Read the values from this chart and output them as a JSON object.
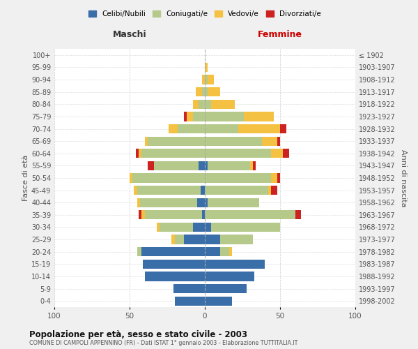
{
  "age_groups": [
    "0-4",
    "5-9",
    "10-14",
    "15-19",
    "20-24",
    "25-29",
    "30-34",
    "35-39",
    "40-44",
    "45-49",
    "50-54",
    "55-59",
    "60-64",
    "65-69",
    "70-74",
    "75-79",
    "80-84",
    "85-89",
    "90-94",
    "95-99",
    "100+"
  ],
  "birth_years": [
    "1998-2002",
    "1993-1997",
    "1988-1992",
    "1983-1987",
    "1978-1982",
    "1973-1977",
    "1968-1972",
    "1963-1967",
    "1958-1962",
    "1953-1957",
    "1948-1952",
    "1943-1947",
    "1938-1942",
    "1933-1937",
    "1928-1932",
    "1923-1927",
    "1918-1922",
    "1913-1917",
    "1908-1912",
    "1903-1907",
    "≤ 1902"
  ],
  "males": {
    "celibi": [
      20,
      21,
      40,
      41,
      42,
      14,
      8,
      2,
      5,
      3,
      0,
      4,
      0,
      0,
      0,
      0,
      0,
      0,
      0,
      0,
      0
    ],
    "coniugati": [
      0,
      0,
      0,
      0,
      3,
      6,
      22,
      38,
      38,
      42,
      48,
      30,
      42,
      38,
      18,
      8,
      4,
      2,
      0,
      0,
      0
    ],
    "vedovi": [
      0,
      0,
      0,
      0,
      0,
      2,
      2,
      2,
      2,
      2,
      2,
      0,
      2,
      2,
      6,
      4,
      4,
      4,
      2,
      0,
      0
    ],
    "divorziati": [
      0,
      0,
      0,
      0,
      0,
      0,
      0,
      2,
      0,
      0,
      0,
      4,
      2,
      0,
      0,
      2,
      0,
      0,
      0,
      0,
      0
    ]
  },
  "females": {
    "nubili": [
      18,
      28,
      33,
      40,
      10,
      10,
      4,
      0,
      2,
      0,
      0,
      2,
      0,
      0,
      0,
      0,
      0,
      0,
      0,
      0,
      0
    ],
    "coniugate": [
      0,
      0,
      0,
      0,
      6,
      22,
      46,
      60,
      34,
      42,
      44,
      28,
      44,
      38,
      22,
      26,
      4,
      2,
      2,
      0,
      0
    ],
    "vedove": [
      0,
      0,
      0,
      0,
      2,
      0,
      0,
      0,
      0,
      2,
      4,
      2,
      8,
      10,
      28,
      20,
      16,
      8,
      4,
      2,
      0
    ],
    "divorziate": [
      0,
      0,
      0,
      0,
      0,
      0,
      0,
      4,
      0,
      4,
      2,
      2,
      4,
      2,
      4,
      0,
      0,
      0,
      0,
      0,
      0
    ]
  },
  "color_celibi": "#3a6ea8",
  "color_coniugati": "#b5c98a",
  "color_vedovi": "#f5c142",
  "color_divorziati": "#cc2222",
  "xlim": 100,
  "title": "Popolazione per età, sesso e stato civile - 2003",
  "subtitle": "COMUNE DI CAMPOLI APPENNINO (FR) - Dati ISTAT 1° gennaio 2003 - Elaborazione TUTTITALIA.IT",
  "ylabel_left": "Fasce di età",
  "ylabel_right": "Anni di nascita",
  "xlabel_left": "Maschi",
  "xlabel_right": "Femmine",
  "bg_color": "#f0f0f0",
  "plot_bg": "#ffffff"
}
